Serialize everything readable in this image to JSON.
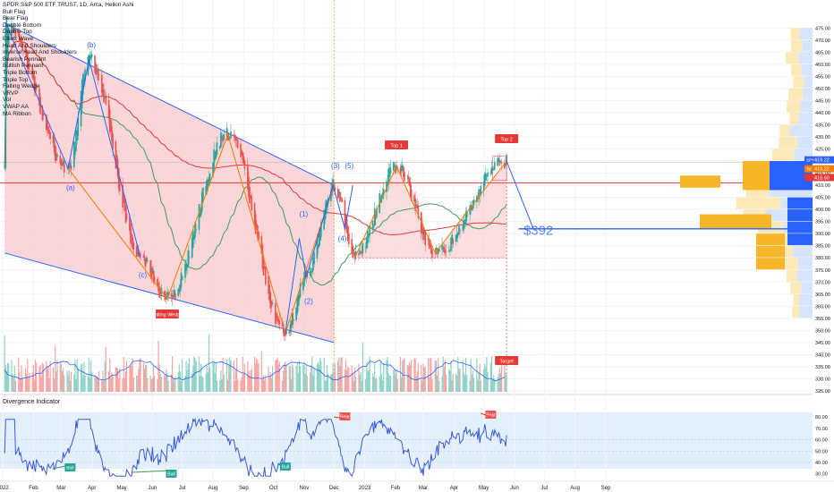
{
  "legend": {
    "title": "SPDR S&P 500 ETF TRUST, 1D, Arca, Heikin Ashi",
    "items": [
      "Bull Flag",
      "Bear Flag",
      "Double Bottom",
      "Double Top",
      "Elliott Wave",
      "Head And Shoulders",
      "Inverse Head And Shoulders",
      "Bearish Pennant",
      "Bullish Pennant",
      "Triple Bottom",
      "Triple Top",
      "Falling Wedge",
      "VRVP",
      "Vol",
      "VWAP AA",
      "MA Ribbon"
    ]
  },
  "indicator_title": "Divergence Indicator",
  "colors": {
    "up": "#26a69a",
    "down": "#ef5350",
    "wedge_fill": "#f8c8cc",
    "ma_green": "#3f9b5c",
    "ma_red": "#e53935",
    "channel": "#2962ff",
    "zigzag": "#f57c00",
    "rsi": "#3c5bd8",
    "price_tag": "#2962ff",
    "dashed_orange": "#ff9800"
  },
  "chart_data": {
    "type": "candlestick",
    "symbol": "SPY",
    "price_axis": {
      "ticks": [
        325,
        330,
        335,
        340,
        345,
        350,
        355,
        360,
        365,
        370,
        375,
        380,
        385,
        390,
        395,
        400,
        405,
        410,
        415,
        420,
        425,
        430,
        435,
        440,
        445,
        450,
        455,
        460,
        465,
        470,
        475
      ],
      "labels": [
        "325.00",
        "330.00",
        "335.00",
        "340.00",
        "345.00",
        "350.00",
        "355.00",
        "360.00",
        "365.00",
        "370.00",
        "375.00",
        "380.00",
        "385.00",
        "390.00",
        "395.00",
        "400.00",
        "405.00",
        "410.00",
        "415.00",
        "420.00",
        "425.00",
        "430.00",
        "435.00",
        "440.00",
        "445.00",
        "450.00",
        "455.00",
        "460.00",
        "465.00",
        "470.00",
        "475.00"
      ]
    },
    "time_axis": [
      "2022",
      "Feb",
      "Mar",
      "Apr",
      "May",
      "Jun",
      "Jul",
      "Aug",
      "Sep",
      "Oct",
      "Nov",
      "Dec",
      "2023",
      "Feb",
      "Mar",
      "Apr",
      "May",
      "Jun",
      "Jul",
      "Aug",
      "Sep"
    ],
    "price_tags": [
      {
        "label": "SPY",
        "value": "419.22"
      },
      {
        "label": "Tsl",
        "value": "419.22"
      },
      {
        "label": "",
        "value": "418.60"
      }
    ],
    "target_label": "$392",
    "wave_labels": [
      "(a)",
      "(b)",
      "(c)",
      "(1)",
      "(2)",
      "(3)",
      "(4)",
      "(5)"
    ],
    "pattern_labels": [
      "Falling Wedge",
      "Top 1",
      "Top 2",
      "Target"
    ],
    "pivots": [
      {
        "date": "2022-01-04",
        "price": 477
      },
      {
        "date": "2022-03-08",
        "price": 417
      },
      {
        "date": "2022-03-29",
        "price": 462
      },
      {
        "date": "2022-05-20",
        "price": 380
      },
      {
        "date": "2022-06-16",
        "price": 363
      },
      {
        "date": "2022-08-16",
        "price": 431
      },
      {
        "date": "2022-10-13",
        "price": 349
      },
      {
        "date": "2022-11-03",
        "price": 372
      },
      {
        "date": "2022-12-01",
        "price": 410
      },
      {
        "date": "2022-12-22",
        "price": 380
      },
      {
        "date": "2023-02-02",
        "price": 418
      },
      {
        "date": "2023-03-13",
        "price": 382
      },
      {
        "date": "2023-05-24",
        "price": 420
      },
      {
        "date": "2023-06-20",
        "price": 392
      }
    ],
    "rsi_axis": {
      "ticks": [
        30,
        40,
        50,
        60,
        70,
        80
      ],
      "labels": [
        "30.00",
        "40.00",
        "50.00",
        "60.00",
        "70.00",
        "80.00"
      ]
    },
    "rsi_labels": [
      "Bull",
      "Bull",
      "Bull",
      "Bear",
      "Bear"
    ]
  }
}
